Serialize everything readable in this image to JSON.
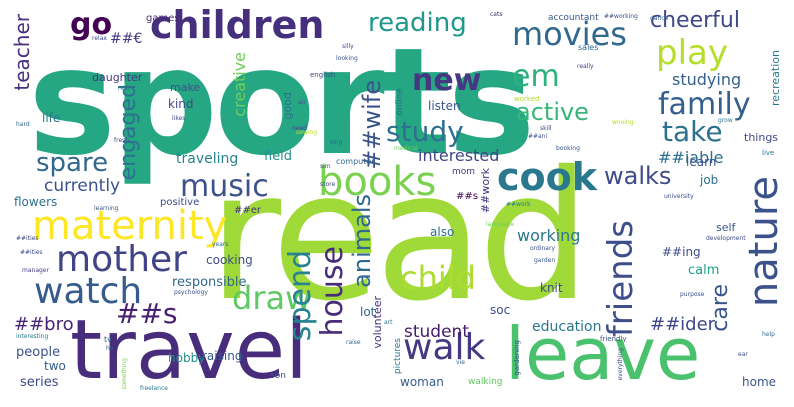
{
  "words": [
    {
      "text": "sports",
      "color": "#26a784"
    },
    {
      "text": "read",
      "color": "#a0da39"
    },
    {
      "text": "travel",
      "color": "#472d7b"
    },
    {
      "text": "leave",
      "color": "#4ac16d"
    },
    {
      "text": "children",
      "color": "#46307e"
    },
    {
      "text": "books",
      "color": "#7ad151"
    },
    {
      "text": "maternity",
      "color": "#fde725"
    },
    {
      "text": "mother",
      "color": "#414487"
    },
    {
      "text": "watch",
      "color": "#365c8d"
    },
    {
      "text": "music",
      "color": "#3b528b"
    },
    {
      "text": "cook",
      "color": "#2a788e"
    },
    {
      "text": "movies",
      "color": "#31688e"
    },
    {
      "text": "play",
      "color": "#b5de2b"
    },
    {
      "text": "family",
      "color": "#355f8d"
    },
    {
      "text": "reading",
      "color": "#1f988b"
    },
    {
      "text": "cheerful",
      "color": "#3e4989"
    },
    {
      "text": "take",
      "color": "#2c728e"
    },
    {
      "text": "nature",
      "color": "#3b528b"
    },
    {
      "text": "walk",
      "color": "#443a83"
    },
    {
      "text": "draw",
      "color": "#5ec962"
    },
    {
      "text": "child",
      "color": "#addc30"
    },
    {
      "text": "friends",
      "color": "#3d4e8a"
    },
    {
      "text": "house",
      "color": "#472c7a"
    },
    {
      "text": "spend",
      "color": "#26828e"
    },
    {
      "text": "animals",
      "color": "#31688e"
    },
    {
      "text": "##wife",
      "color": "#3b528b"
    },
    {
      "text": "study",
      "color": "#2c718e"
    },
    {
      "text": "new",
      "color": "#453781"
    },
    {
      "text": "em",
      "color": "#2db27d"
    },
    {
      "text": "active",
      "color": "#35b779"
    },
    {
      "text": "go",
      "color": "#440154"
    },
    {
      "text": "spare",
      "color": "#31688e"
    },
    {
      "text": "walks",
      "color": "#3e4a89"
    },
    {
      "text": "engaged",
      "color": "#2c728e"
    },
    {
      "text": "teacher",
      "color": "#472f7d"
    },
    {
      "text": "##s",
      "color": "#482173"
    },
    {
      "text": "care",
      "color": "#39568c"
    },
    {
      "text": "interested",
      "color": "#3f4788"
    },
    {
      "text": "studying",
      "color": "#34618d"
    },
    {
      "text": "working",
      "color": "#2a778e"
    },
    {
      "text": "student",
      "color": "#481a6c"
    },
    {
      "text": "currently",
      "color": "#3b518b"
    },
    {
      "text": "##bro",
      "color": "#482677"
    },
    {
      "text": "##ider",
      "color": "#3f4889"
    },
    {
      "text": "creative",
      "color": "#6ece58"
    },
    {
      "text": "traveling",
      "color": "#25858e"
    },
    {
      "text": "##iable",
      "color": "#2e6f8e"
    },
    {
      "text": "field",
      "color": "#21918c"
    },
    {
      "text": "cooking",
      "color": "#3d4d8a"
    },
    {
      "text": "responsible",
      "color": "#31688e"
    },
    {
      "text": "hobby",
      "color": "#21918c"
    },
    {
      "text": "raising",
      "color": "#375b8d"
    },
    {
      "text": "education",
      "color": "#2a768e"
    },
    {
      "text": "people",
      "color": "#3a538b"
    },
    {
      "text": "two",
      "color": "#355e8d"
    },
    {
      "text": "series",
      "color": "#3f4889"
    },
    {
      "text": "woman",
      "color": "#365c8d"
    },
    {
      "text": "home",
      "color": "#39568c"
    },
    {
      "text": "lot",
      "color": "#31688e"
    },
    {
      "text": "soc",
      "color": "#3e4a89"
    },
    {
      "text": "knit",
      "color": "#3f4788"
    },
    {
      "text": "calm",
      "color": "#1fa088"
    },
    {
      "text": "also",
      "color": "#2e6e8e"
    },
    {
      "text": "learn",
      "color": "#39568c"
    },
    {
      "text": "job",
      "color": "#2c728e"
    },
    {
      "text": "listen",
      "color": "#3b528b"
    },
    {
      "text": "volunteer",
      "color": "#46327e"
    },
    {
      "text": "flowers",
      "color": "#2d708e"
    },
    {
      "text": "games",
      "color": "#482878"
    },
    {
      "text": "##€",
      "color": "#453781"
    },
    {
      "text": "make",
      "color": "#3b528b"
    },
    {
      "text": "kind",
      "color": "#3e4989"
    },
    {
      "text": "daughter",
      "color": "#453882"
    },
    {
      "text": "life",
      "color": "#2a788e"
    },
    {
      "text": "good",
      "color": "#2d708e"
    },
    {
      "text": "online",
      "color": "#31688e"
    },
    {
      "text": "recreation",
      "color": "#2a788e"
    },
    {
      "text": "accountant",
      "color": "#38588c"
    },
    {
      "text": "things",
      "color": "#3e4a89"
    },
    {
      "text": "positive",
      "color": "#3e4989"
    },
    {
      "text": "##ing",
      "color": "#3d4d8a"
    },
    {
      "text": "##work",
      "color": "#453781"
    },
    {
      "text": "##s",
      "color": "#440154"
    },
    {
      "text": "##er",
      "color": "#46337f"
    },
    {
      "text": "english",
      "color": "#3f4788"
    },
    {
      "text": "self",
      "color": "#39568c"
    },
    {
      "text": "sales",
      "color": "#31688e"
    },
    {
      "text": "computer",
      "color": "#31688e"
    },
    {
      "text": "son",
      "color": "#3b518b"
    },
    {
      "text": "mom",
      "color": "#443a83"
    },
    {
      "text": "friendly",
      "color": "#3a538b"
    },
    {
      "text": "worked",
      "color": "#b5de2b"
    },
    {
      "text": "manager",
      "color": "#433e85"
    },
    {
      "text": "##ities",
      "color": "#3f4788"
    },
    {
      "text": "language",
      "color": "#6ece58"
    },
    {
      "text": "university",
      "color": "#3e4989"
    },
    {
      "text": "garden",
      "color": "#38588c"
    },
    {
      "text": "ordinary",
      "color": "#3b528b"
    },
    {
      "text": "tv",
      "color": "#31688e"
    },
    {
      "text": "pictures",
      "color": "#2a788e"
    },
    {
      "text": "walking",
      "color": "#5ec962"
    },
    {
      "text": "freelance",
      "color": "#2a788e"
    },
    {
      "text": "purpose",
      "color": "#3b528b"
    },
    {
      "text": "development",
      "color": "#3e4a89"
    },
    {
      "text": "interesting",
      "color": "#2a788e"
    },
    {
      "text": "psychology",
      "color": "#3b528b"
    },
    {
      "text": "really",
      "color": "#453781"
    },
    {
      "text": "fresh",
      "color": "#3e4989"
    },
    {
      "text": "##working",
      "color": "#3d4d8a"
    },
    {
      "text": "dance",
      "color": "#31688e"
    },
    {
      "text": "cats",
      "color": "#482878"
    },
    {
      "text": "silly",
      "color": "#3e4a89"
    },
    {
      "text": "looking",
      "color": "#3b528b"
    },
    {
      "text": "rest",
      "color": "#2a788e"
    },
    {
      "text": "relax",
      "color": "#3f4788"
    },
    {
      "text": "learning",
      "color": "#3b528b"
    },
    {
      "text": "years",
      "color": "#31688e"
    },
    {
      "text": "gardening",
      "color": "#3b528b"
    },
    {
      "text": "medical",
      "color": "#6ece58"
    },
    {
      "text": "need",
      "color": "#3e4989"
    },
    {
      "text": "raise",
      "color": "#31688e"
    },
    {
      "text": "sewing",
      "color": "#b5de2b"
    },
    {
      "text": "everything",
      "color": "#3b528b"
    },
    {
      "text": "help",
      "color": "#31688e"
    },
    {
      "text": "skill",
      "color": "#3e4a89"
    },
    {
      "text": "live",
      "color": "#2a788e"
    },
    {
      "text": "booking",
      "color": "#3b528b"
    },
    {
      "text": "store",
      "color": "#3e4989"
    },
    {
      "text": "sing",
      "color": "#31688e"
    },
    {
      "text": "air",
      "color": "#3b528b"
    },
    {
      "text": "hard",
      "color": "#31688e"
    },
    {
      "text": "likes",
      "color": "#3e4989"
    },
    {
      "text": "art",
      "color": "#2a788e"
    },
    {
      "text": "ear",
      "color": "#3b528b"
    },
    {
      "text": "ho",
      "color": "#31688e"
    },
    {
      "text": "wooing",
      "color": "#b5de2b"
    },
    {
      "text": "##ities",
      "color": "#3e4989"
    },
    {
      "text": "grow",
      "color": "#2a788e"
    },
    {
      "text": "##ani",
      "color": "#3b528b"
    },
    {
      "text": "something",
      "color": "#7ad151"
    },
    {
      "text": "vie",
      "color": "#31688e"
    },
    {
      "text": "sim",
      "color": "#3e4a89"
    },
    {
      "text": "##work",
      "color": "#2a788e"
    }
  ]
}
